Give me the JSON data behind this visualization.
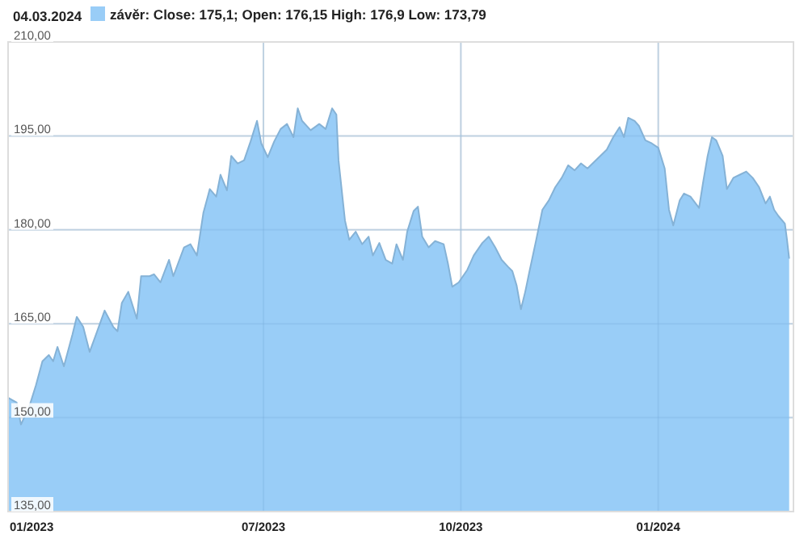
{
  "chart_data": {
    "type": "area",
    "title": "04.03.2024",
    "legend": "top",
    "grid": true,
    "xlim": [
      "2023-03-04",
      "2024-03-04"
    ],
    "xticks": [
      {
        "value": "2023-03-04",
        "label": "01/2023"
      },
      {
        "value": "2023-07-01",
        "label": "07/2023"
      },
      {
        "value": "2023-10-01",
        "label": "10/2023"
      },
      {
        "value": "2024-01-01",
        "label": "01/2024"
      }
    ],
    "ylim": [
      135,
      210
    ],
    "yticks": [
      {
        "value": 135,
        "label": "135,00"
      },
      {
        "value": 150,
        "label": "150,00"
      },
      {
        "value": 165,
        "label": "165,00"
      },
      {
        "value": 180,
        "label": "180,00"
      },
      {
        "value": 195,
        "label": "195,00"
      },
      {
        "value": 210,
        "label": "210,00"
      }
    ],
    "x": [
      "2023-03-04",
      "2023-03-08",
      "2023-03-10",
      "2023-03-14",
      "2023-03-17",
      "2023-03-20",
      "2023-03-23",
      "2023-03-25",
      "2023-03-27",
      "2023-03-30",
      "2023-04-03",
      "2023-04-05",
      "2023-04-08",
      "2023-04-11",
      "2023-04-14",
      "2023-04-18",
      "2023-04-22",
      "2023-04-24",
      "2023-04-26",
      "2023-04-29",
      "2023-05-03",
      "2023-05-05",
      "2023-05-09",
      "2023-05-11",
      "2023-05-14",
      "2023-05-18",
      "2023-05-20",
      "2023-05-25",
      "2023-05-28",
      "2023-05-31",
      "2023-06-03",
      "2023-06-06",
      "2023-06-09",
      "2023-06-11",
      "2023-06-14",
      "2023-06-16",
      "2023-06-19",
      "2023-06-22",
      "2023-06-25",
      "2023-06-28",
      "2023-06-30",
      "2023-07-03",
      "2023-07-06",
      "2023-07-09",
      "2023-07-12",
      "2023-07-15",
      "2023-07-17",
      "2023-07-19",
      "2023-07-23",
      "2023-07-27",
      "2023-07-30",
      "2023-08-02",
      "2023-08-04",
      "2023-08-05",
      "2023-08-08",
      "2023-08-10",
      "2023-08-13",
      "2023-08-16",
      "2023-08-19",
      "2023-08-21",
      "2023-08-24",
      "2023-08-27",
      "2023-08-30",
      "2023-09-01",
      "2023-09-04",
      "2023-09-06",
      "2023-09-09",
      "2023-09-11",
      "2023-09-13",
      "2023-09-16",
      "2023-09-19",
      "2023-09-23",
      "2023-09-25",
      "2023-09-27",
      "2023-09-30",
      "2023-10-04",
      "2023-10-07",
      "2023-10-11",
      "2023-10-14",
      "2023-10-17",
      "2023-10-20",
      "2023-10-23",
      "2023-10-25",
      "2023-10-27",
      "2023-10-29",
      "2023-10-31",
      "2023-11-02",
      "2023-11-05",
      "2023-11-08",
      "2023-11-11",
      "2023-11-14",
      "2023-11-17",
      "2023-11-20",
      "2023-11-23",
      "2023-11-26",
      "2023-11-29",
      "2023-12-02",
      "2023-12-05",
      "2023-12-08",
      "2023-12-11",
      "2023-12-14",
      "2023-12-16",
      "2023-12-18",
      "2023-12-21",
      "2023-12-23",
      "2023-12-26",
      "2023-12-29",
      "2024-01-01",
      "2024-01-04",
      "2024-01-06",
      "2024-01-08",
      "2024-01-11",
      "2024-01-13",
      "2024-01-16",
      "2024-01-20",
      "2024-01-22",
      "2024-01-24",
      "2024-01-26",
      "2024-01-28",
      "2024-01-31",
      "2024-02-02",
      "2024-02-05",
      "2024-02-08",
      "2024-02-11",
      "2024-02-14",
      "2024-02-17",
      "2024-02-20",
      "2024-02-22",
      "2024-02-24",
      "2024-02-26",
      "2024-02-29",
      "2024-03-01",
      "2024-03-02"
    ],
    "series": [
      {
        "name": "závěr: Close: 175,1; Open: 176,15 High: 176,9 Low: 173,79",
        "color": "#99cdf7",
        "values": [
          153.2,
          152.4,
          148.9,
          151.9,
          155.2,
          159,
          160,
          159,
          161.3,
          158.2,
          163.3,
          166.1,
          164.5,
          160.5,
          163.3,
          167.1,
          164.5,
          163.8,
          168.3,
          170.1,
          165.8,
          172.6,
          172.6,
          172.9,
          171.6,
          175.2,
          172.6,
          177.2,
          177.7,
          175.9,
          182.7,
          186.5,
          185.3,
          188.8,
          186.3,
          191.8,
          190.6,
          191.1,
          194.1,
          197.4,
          193.8,
          191.6,
          194.1,
          196.1,
          196.9,
          194.8,
          199.4,
          197.4,
          195.9,
          196.9,
          196.1,
          199.4,
          198.4,
          191.1,
          181.5,
          178.4,
          179.7,
          177.7,
          178.9,
          175.9,
          177.9,
          175.2,
          174.6,
          177.7,
          175.2,
          179.7,
          183,
          183.7,
          178.9,
          177.2,
          178.2,
          177.7,
          174.6,
          170.9,
          171.6,
          173.6,
          175.9,
          177.9,
          178.9,
          177.2,
          175.2,
          174.1,
          173.4,
          171.1,
          167.3,
          170.1,
          173.4,
          178.2,
          183.2,
          184.7,
          186.8,
          188.3,
          190.3,
          189.5,
          190.6,
          189.8,
          190.8,
          191.8,
          192.8,
          194.8,
          196.4,
          194.8,
          197.9,
          197.4,
          196.6,
          194.3,
          193.8,
          193.1,
          189.8,
          183.2,
          180.7,
          184.7,
          185.8,
          185.3,
          183.5,
          187.8,
          191.8,
          194.8,
          194.3,
          191.8,
          186.5,
          188.3,
          188.8,
          189.3,
          188.3,
          186.8,
          184.2,
          185.3,
          183.2,
          182.2,
          181,
          178.4,
          175.4
        ]
      }
    ]
  }
}
